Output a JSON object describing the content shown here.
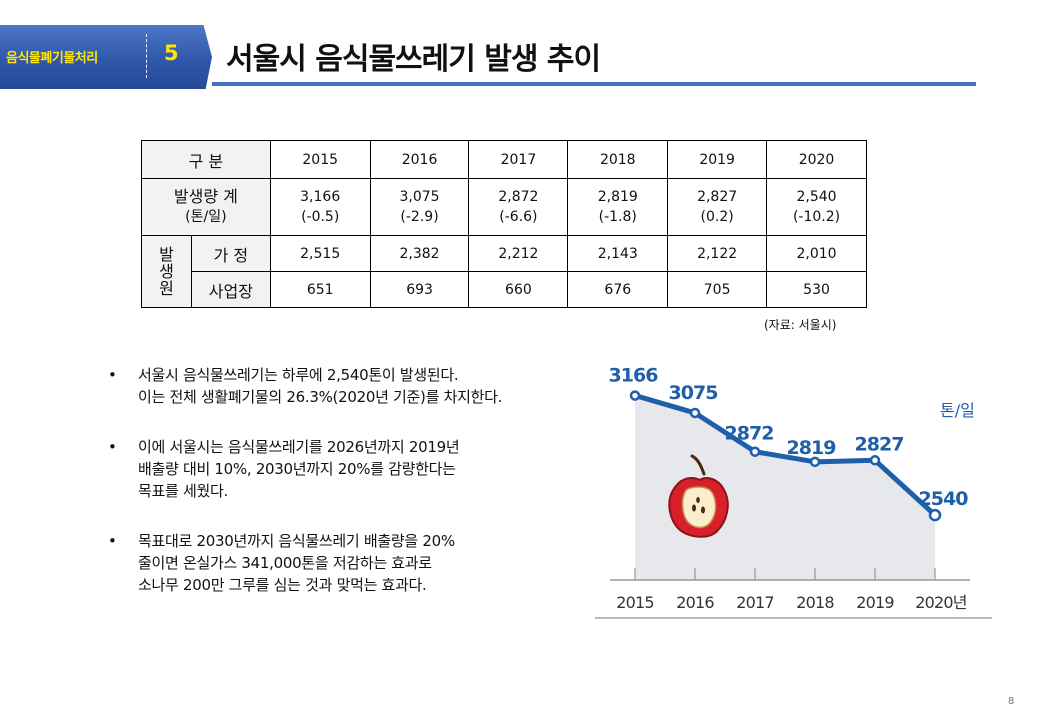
{
  "header": {
    "section_label": "음식물폐기물처리",
    "section_number": "5",
    "title": "서울시 음식물쓰레기 발생 추이"
  },
  "table": {
    "col_header": "구 분",
    "years": [
      "2015",
      "2016",
      "2017",
      "2018",
      "2019",
      "2020"
    ],
    "total_label_1": "발생량 계",
    "total_label_2": "(톤/일)",
    "total_values": [
      "3,166",
      "3,075",
      "2,872",
      "2,819",
      "2,827",
      "2,540"
    ],
    "total_changes": [
      "(-0.5)",
      "(-2.9)",
      "(-6.6)",
      "(-1.8)",
      "(0.2)",
      "(-10.2)"
    ],
    "source_group_label": "발생원",
    "household_label": "가 정",
    "household_values": [
      "2,515",
      "2,382",
      "2,212",
      "2,143",
      "2,122",
      "2,010"
    ],
    "business_label": "사업장",
    "business_values": [
      "651",
      "693",
      "660",
      "676",
      "705",
      "530"
    ],
    "source_note": "(자료: 서울시)"
  },
  "bullets": [
    {
      "marker": "•",
      "lines": [
        "서울시 음식물쓰레기는 하루에 2,540톤이 발생된다.",
        "이는 전체 생활폐기물의 26.3%(2020년 기준)를 차지한다."
      ]
    },
    {
      "marker": "•",
      "lines": [
        "이에 서울시는 음식물쓰레기를 2026년까지 2019년",
        "배출량 대비 10%, 2030년까지 20%를 감량한다는",
        "목표를 세웠다."
      ]
    },
    {
      "marker": "•",
      "lines": [
        "목표대로 2030년까지 음식물쓰레기 배출량을 20%",
        "줄이면 온실가스 341,000톤을 저감하는 효과로",
        "소나무 200만 그루를 심는 것과 맞먹는 효과다."
      ]
    }
  ],
  "chart_data": {
    "type": "line",
    "x": [
      "2015",
      "2016",
      "2017",
      "2018",
      "2019",
      "2020년"
    ],
    "values": [
      3166,
      3075,
      2872,
      2819,
      2827,
      2540
    ],
    "value_labels": [
      "3166",
      "3075",
      "2872",
      "2819",
      "2827",
      "2540"
    ],
    "unit_label": "톤/일",
    "ylim": [
      2200,
      3300
    ],
    "line_color": "#1f5ea8",
    "area_color": "#e6e8ec",
    "grid": false
  },
  "colors": {
    "accent": "#4a72c4",
    "badge_text": "#ffe600"
  },
  "page_number": "8"
}
